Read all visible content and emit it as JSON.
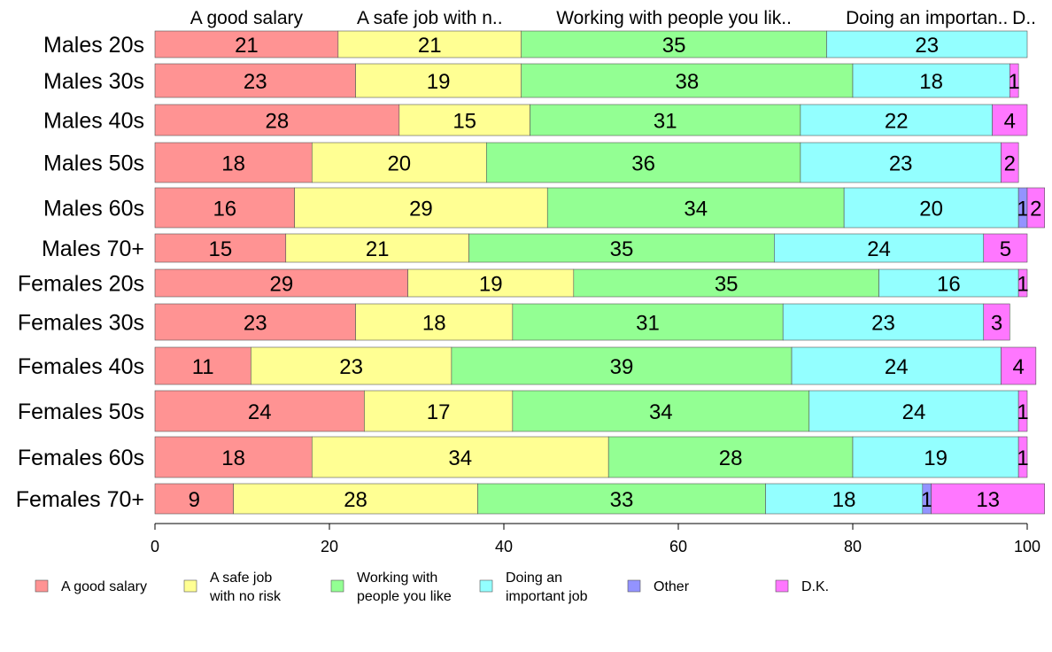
{
  "chart_data": {
    "type": "bar",
    "orientation": "horizontal",
    "stacked": true,
    "categories": [
      "Males 20s",
      "Males 30s",
      "Males 40s",
      "Males 50s",
      "Males 60s",
      "Males 70+",
      "Females 20s",
      "Females 30s",
      "Females 40s",
      "Females 50s",
      "Females 60s",
      "Females 70+"
    ],
    "series": [
      {
        "name": "A good salary",
        "legend_label": "A good salary",
        "top_label": "A good salary",
        "color": "#ff9393",
        "values": [
          21,
          23,
          28,
          18,
          16,
          15,
          29,
          23,
          11,
          24,
          18,
          9
        ]
      },
      {
        "name": "A safe job with no risk",
        "legend_label": "A safe job\nwith no risk",
        "top_label": "A safe job with n..",
        "color": "#ffff93",
        "values": [
          21,
          19,
          15,
          20,
          29,
          21,
          19,
          18,
          23,
          17,
          34,
          28
        ]
      },
      {
        "name": "Working with people you like",
        "legend_label": "Working with\npeople you like",
        "top_label": "Working with people you lik..",
        "color": "#93ff93",
        "values": [
          35,
          38,
          31,
          36,
          34,
          35,
          35,
          31,
          39,
          34,
          28,
          33
        ]
      },
      {
        "name": "Doing an important job",
        "legend_label": "Doing an\nimportant job",
        "top_label": "Doing an importan..",
        "color": "#93ffff",
        "values": [
          23,
          18,
          22,
          23,
          20,
          24,
          16,
          23,
          24,
          24,
          19,
          18
        ]
      },
      {
        "name": "Other",
        "legend_label": "Other",
        "top_label": "",
        "color": "#9393ff",
        "values": [
          0,
          0,
          0,
          0,
          1,
          0,
          0,
          0,
          0,
          0,
          0,
          1
        ]
      },
      {
        "name": "D.K.",
        "legend_label": "D.K.",
        "top_label": "D..",
        "color": "#ff77ff",
        "values": [
          0,
          1,
          4,
          2,
          2,
          5,
          1,
          3,
          4,
          1,
          1,
          13
        ]
      }
    ],
    "xlim": [
      0,
      100
    ],
    "xticks": [
      0,
      20,
      40,
      60,
      80,
      100
    ],
    "xlabel": "",
    "ylabel": "",
    "legend_position": "bottom",
    "grid": false
  }
}
